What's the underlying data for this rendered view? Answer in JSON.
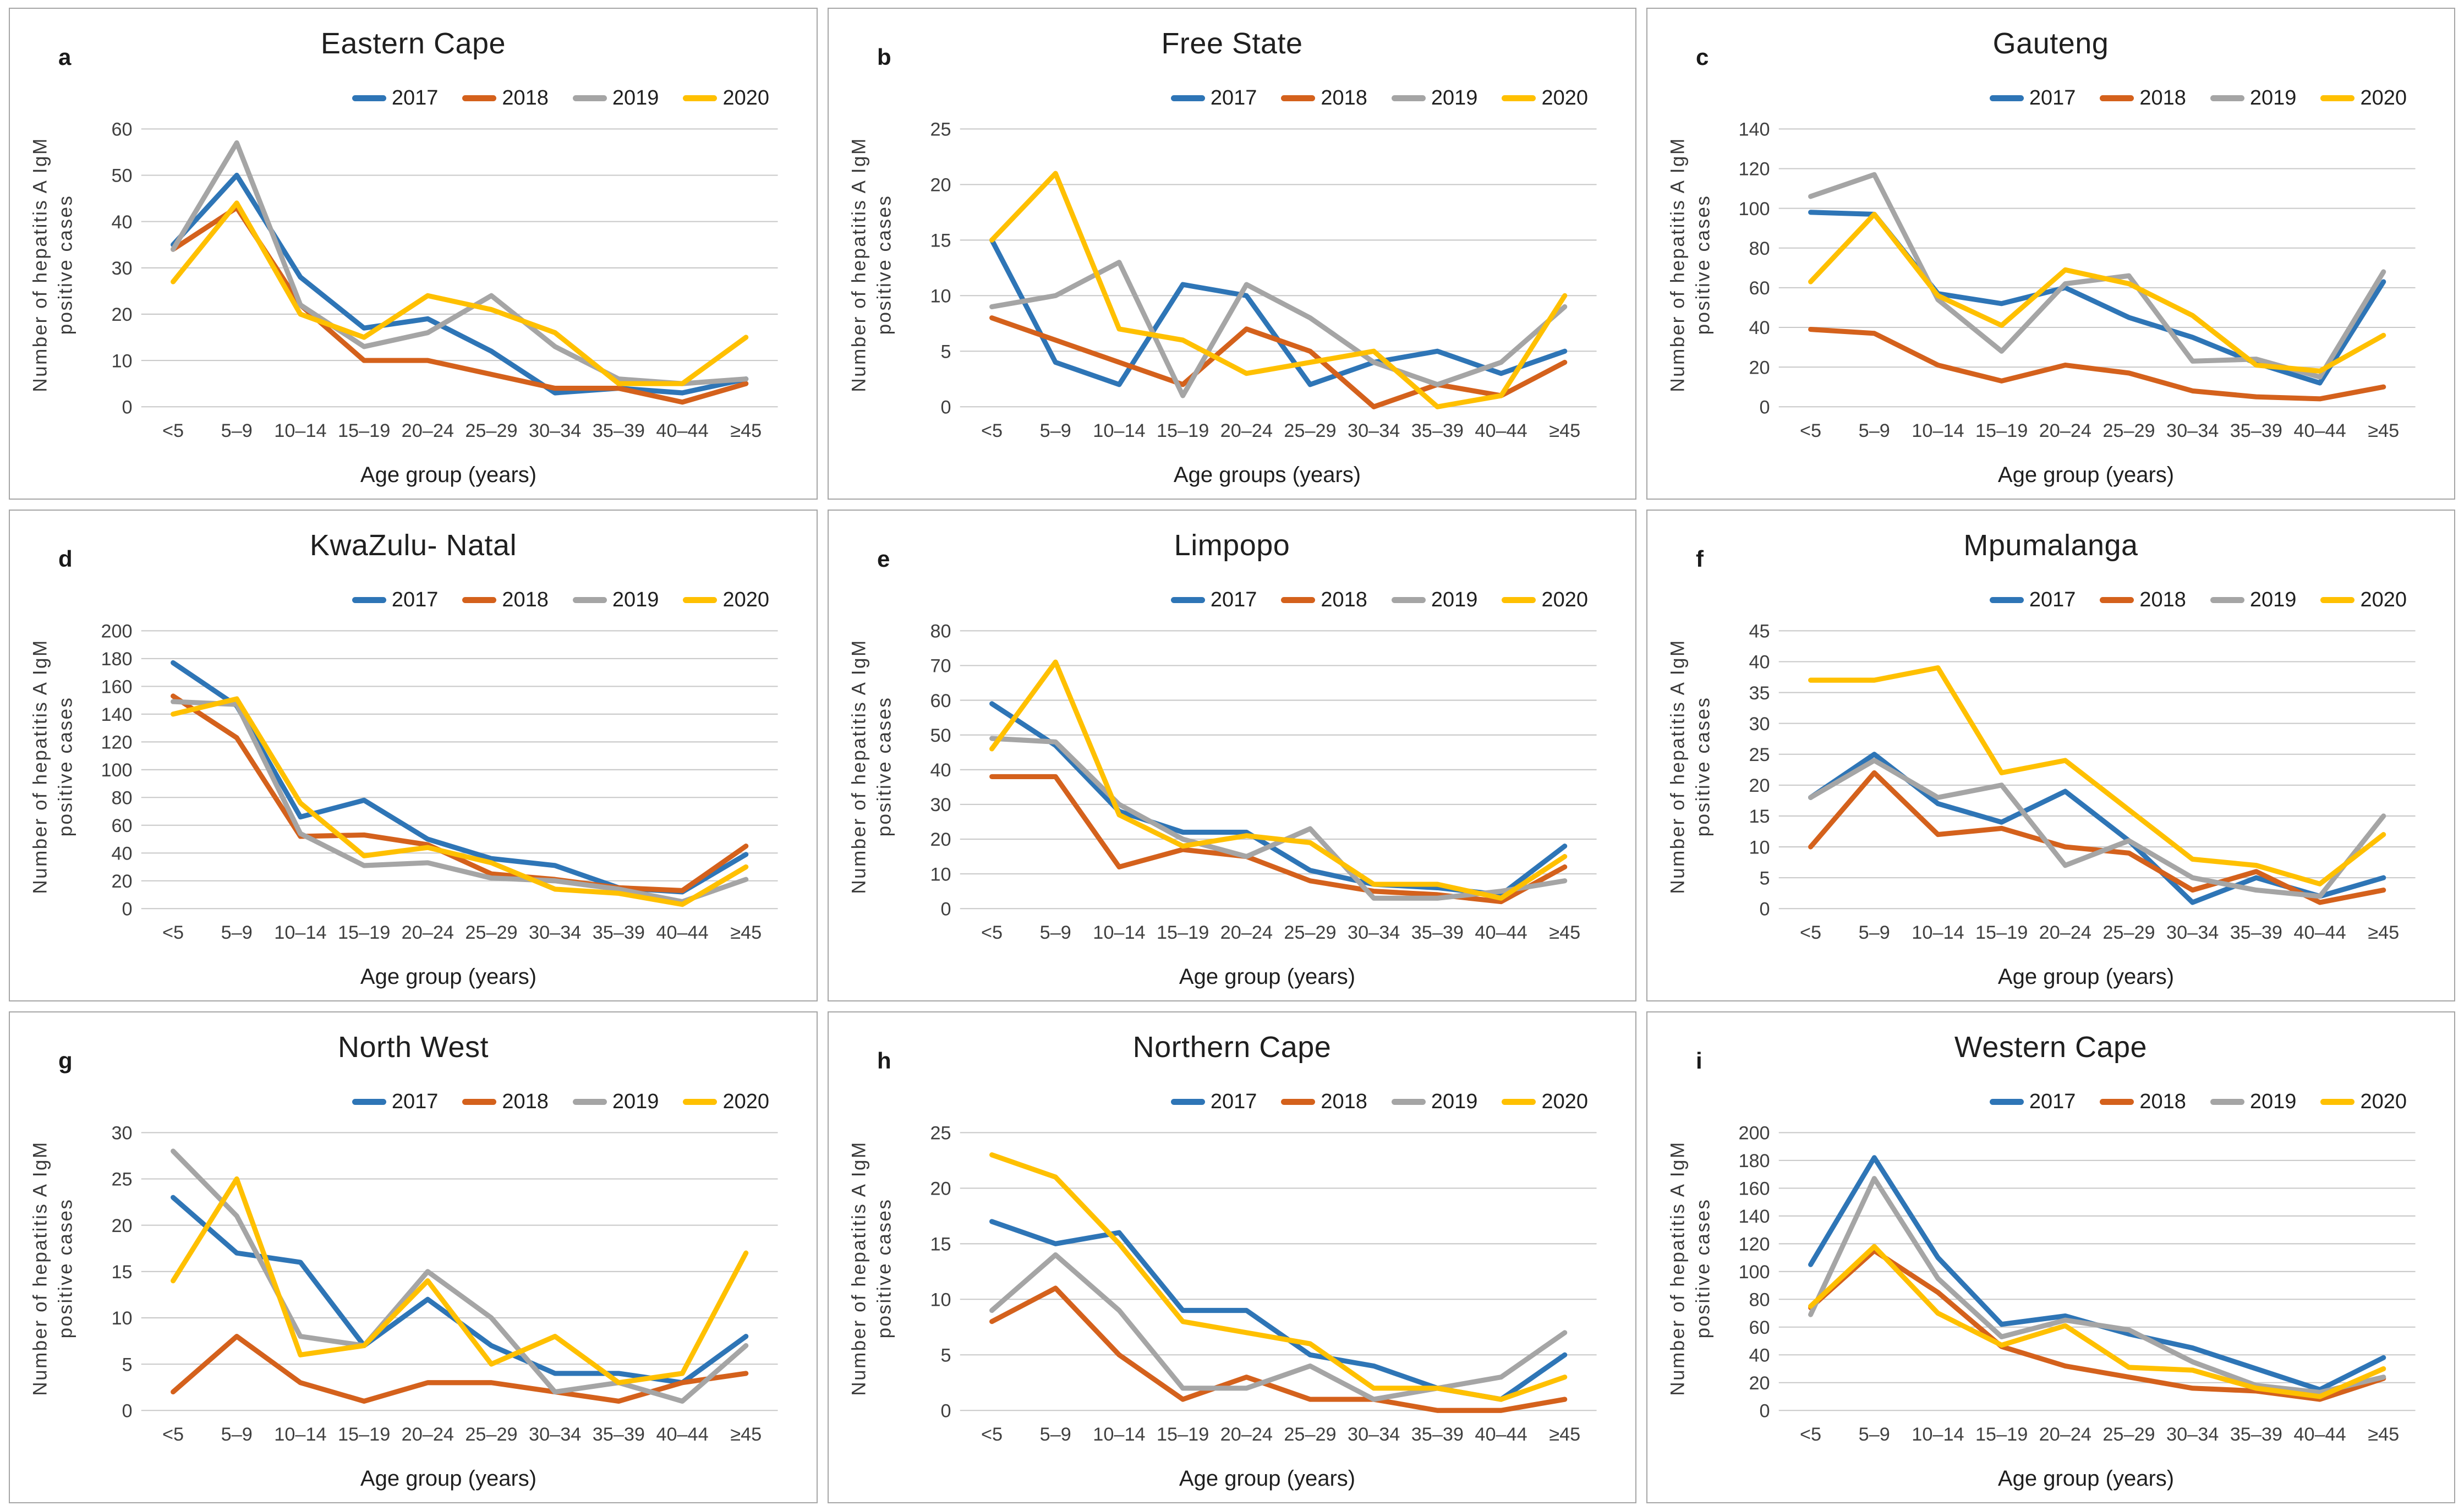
{
  "figure": {
    "layout_hints": {
      "grid": "3 columns x 3 rows",
      "legend_position": "top-right inside each panel",
      "gridlines": "horizontal only",
      "line_thickness": "thick",
      "panel_border_color": "#a6a6a6",
      "gridline_color": "#c8c8c8"
    },
    "series_colors": {
      "2017": "#2e75b6",
      "2018": "#d4611c",
      "2019": "#a5a5a5",
      "2020": "#ffc000"
    }
  },
  "chart_data": [
    {
      "letter": "a",
      "title": "Eastern Cape",
      "type": "line",
      "xlabel": "Age group (years)",
      "ylabel": "Number of hepatitis A IgM positive cases",
      "ylim": [
        0,
        60
      ],
      "ytick_step": 10,
      "categories": [
        "<5",
        "5–9",
        "10–14",
        "15–19",
        "20–24",
        "25–29",
        "30–34",
        "35–39",
        "40–44",
        "≥45"
      ],
      "series": [
        {
          "name": "2017",
          "color": "#2e75b6",
          "values": [
            35,
            50,
            28,
            17,
            19,
            12,
            3,
            4,
            3,
            6
          ]
        },
        {
          "name": "2018",
          "color": "#d4611c",
          "values": [
            34,
            43,
            22,
            10,
            10,
            7,
            4,
            4,
            1,
            5
          ]
        },
        {
          "name": "2019",
          "color": "#a5a5a5",
          "values": [
            34,
            57,
            22,
            13,
            16,
            24,
            13,
            6,
            5,
            6
          ]
        },
        {
          "name": "2020",
          "color": "#ffc000",
          "values": [
            27,
            44,
            20,
            15,
            24,
            21,
            16,
            5,
            5,
            15
          ]
        }
      ]
    },
    {
      "letter": "b",
      "title": "Free State",
      "type": "line",
      "xlabel": "Age groups (years)",
      "ylabel": "Number of hepatitis A IgM positive cases",
      "ylim": [
        0,
        25
      ],
      "ytick_step": 5,
      "categories": [
        "<5",
        "5–9",
        "10–14",
        "15–19",
        "20–24",
        "25–29",
        "30–34",
        "35–39",
        "40–44",
        "≥45"
      ],
      "series": [
        {
          "name": "2017",
          "color": "#2e75b6",
          "values": [
            15,
            4,
            2,
            11,
            10,
            2,
            4,
            5,
            3,
            5
          ]
        },
        {
          "name": "2018",
          "color": "#d4611c",
          "values": [
            8,
            6,
            4,
            2,
            7,
            5,
            0,
            2,
            1,
            4
          ]
        },
        {
          "name": "2019",
          "color": "#a5a5a5",
          "values": [
            9,
            10,
            13,
            1,
            11,
            8,
            4,
            2,
            4,
            9
          ]
        },
        {
          "name": "2020",
          "color": "#ffc000",
          "values": [
            15,
            21,
            7,
            6,
            3,
            4,
            5,
            0,
            1,
            10
          ]
        }
      ]
    },
    {
      "letter": "c",
      "title": "Gauteng",
      "type": "line",
      "xlabel": "Age group (years)",
      "ylabel": "Number of hepatitis A IgM positive cases",
      "ylim": [
        0,
        140
      ],
      "ytick_step": 20,
      "categories": [
        "<5",
        "5–9",
        "10–14",
        "15–19",
        "20–24",
        "25–29",
        "30–34",
        "35–39",
        "40–44",
        "≥45"
      ],
      "series": [
        {
          "name": "2017",
          "color": "#2e75b6",
          "values": [
            98,
            97,
            57,
            52,
            60,
            45,
            35,
            22,
            12,
            63
          ]
        },
        {
          "name": "2018",
          "color": "#d4611c",
          "values": [
            39,
            37,
            21,
            13,
            21,
            17,
            8,
            5,
            4,
            10
          ]
        },
        {
          "name": "2019",
          "color": "#a5a5a5",
          "values": [
            106,
            117,
            54,
            28,
            62,
            66,
            23,
            24,
            15,
            68
          ]
        },
        {
          "name": "2020",
          "color": "#ffc000",
          "values": [
            63,
            97,
            56,
            41,
            69,
            62,
            46,
            21,
            18,
            36
          ]
        }
      ]
    },
    {
      "letter": "d",
      "title": "KwaZulu- Natal",
      "type": "line",
      "xlabel": "Age group (years)",
      "ylabel": "Number of hepatitis A IgM positive cases",
      "ylim": [
        0,
        200
      ],
      "ytick_step": 20,
      "categories": [
        "<5",
        "5–9",
        "10–14",
        "15–19",
        "20–24",
        "25–29",
        "30–34",
        "35–39",
        "40–44",
        "≥45"
      ],
      "series": [
        {
          "name": "2017",
          "color": "#2e75b6",
          "values": [
            177,
            146,
            66,
            78,
            50,
            36,
            31,
            15,
            12,
            39
          ]
        },
        {
          "name": "2018",
          "color": "#d4611c",
          "values": [
            153,
            123,
            52,
            53,
            46,
            25,
            21,
            15,
            13,
            45
          ]
        },
        {
          "name": "2019",
          "color": "#a5a5a5",
          "values": [
            149,
            147,
            54,
            31,
            33,
            22,
            20,
            14,
            5,
            21
          ]
        },
        {
          "name": "2020",
          "color": "#ffc000",
          "values": [
            140,
            151,
            76,
            38,
            44,
            33,
            14,
            11,
            3,
            30
          ]
        }
      ]
    },
    {
      "letter": "e",
      "title": "Limpopo",
      "type": "line",
      "xlabel": "Age group (years)",
      "ylabel": "Number of hepatitis A IgM positive cases",
      "ylim": [
        0,
        80
      ],
      "ytick_step": 10,
      "categories": [
        "<5",
        "5–9",
        "10–14",
        "15–19",
        "20–24",
        "25–29",
        "30–34",
        "35–39",
        "40–44",
        "≥45"
      ],
      "series": [
        {
          "name": "2017",
          "color": "#2e75b6",
          "values": [
            59,
            47,
            28,
            22,
            22,
            11,
            7,
            6,
            4,
            18
          ]
        },
        {
          "name": "2018",
          "color": "#d4611c",
          "values": [
            38,
            38,
            12,
            17,
            15,
            8,
            5,
            4,
            2,
            12
          ]
        },
        {
          "name": "2019",
          "color": "#a5a5a5",
          "values": [
            49,
            48,
            30,
            20,
            15,
            23,
            3,
            3,
            5,
            8
          ]
        },
        {
          "name": "2020",
          "color": "#ffc000",
          "values": [
            46,
            71,
            27,
            18,
            21,
            19,
            7,
            7,
            3,
            15
          ]
        }
      ]
    },
    {
      "letter": "f",
      "title": "Mpumalanga",
      "type": "line",
      "xlabel": "Age group (years)",
      "ylabel": "Number of hepatitis A IgM positive cases",
      "ylim": [
        0,
        45
      ],
      "ytick_step": 5,
      "categories": [
        "<5",
        "5–9",
        "10–14",
        "15–19",
        "20–24",
        "25–29",
        "30–34",
        "35–39",
        "40–44",
        "≥45"
      ],
      "series": [
        {
          "name": "2017",
          "color": "#2e75b6",
          "values": [
            18,
            25,
            17,
            14,
            19,
            11,
            1,
            5,
            2,
            5
          ]
        },
        {
          "name": "2018",
          "color": "#d4611c",
          "values": [
            10,
            22,
            12,
            13,
            10,
            9,
            3,
            6,
            1,
            3
          ]
        },
        {
          "name": "2019",
          "color": "#a5a5a5",
          "values": [
            18,
            24,
            18,
            20,
            7,
            11,
            5,
            3,
            2,
            15
          ]
        },
        {
          "name": "2020",
          "color": "#ffc000",
          "values": [
            37,
            37,
            39,
            22,
            24,
            16,
            8,
            7,
            4,
            12
          ]
        }
      ]
    },
    {
      "letter": "g",
      "title": "North West",
      "type": "line",
      "xlabel": "Age group (years)",
      "ylabel": "Number of hepatitis A IgM positive cases",
      "ylim": [
        0,
        30
      ],
      "ytick_step": 5,
      "categories": [
        "<5",
        "5–9",
        "10–14",
        "15–19",
        "20–24",
        "25–29",
        "30–34",
        "35–39",
        "40–44",
        "≥45"
      ],
      "series": [
        {
          "name": "2017",
          "color": "#2e75b6",
          "values": [
            23,
            17,
            16,
            7,
            12,
            7,
            4,
            4,
            3,
            8
          ]
        },
        {
          "name": "2018",
          "color": "#d4611c",
          "values": [
            2,
            8,
            3,
            1,
            3,
            3,
            2,
            1,
            3,
            4
          ]
        },
        {
          "name": "2019",
          "color": "#a5a5a5",
          "values": [
            28,
            21,
            8,
            7,
            15,
            10,
            2,
            3,
            1,
            7
          ]
        },
        {
          "name": "2020",
          "color": "#ffc000",
          "values": [
            14,
            25,
            6,
            7,
            14,
            5,
            8,
            3,
            4,
            17
          ]
        }
      ]
    },
    {
      "letter": "h",
      "title": "Northern Cape",
      "type": "line",
      "xlabel": "Age group (years)",
      "ylabel": "Number of hepatitis A IgM positive cases",
      "ylim": [
        0,
        25
      ],
      "ytick_step": 5,
      "categories": [
        "<5",
        "5–9",
        "10–14",
        "15–19",
        "20–24",
        "25–29",
        "30–34",
        "35–39",
        "40–44",
        "≥45"
      ],
      "series": [
        {
          "name": "2017",
          "color": "#2e75b6",
          "values": [
            17,
            15,
            16,
            9,
            9,
            5,
            4,
            2,
            1,
            5
          ]
        },
        {
          "name": "2018",
          "color": "#d4611c",
          "values": [
            8,
            11,
            5,
            1,
            3,
            1,
            1,
            0,
            0,
            1
          ]
        },
        {
          "name": "2019",
          "color": "#a5a5a5",
          "values": [
            9,
            14,
            9,
            2,
            2,
            4,
            1,
            2,
            3,
            7
          ]
        },
        {
          "name": "2020",
          "color": "#ffc000",
          "values": [
            23,
            21,
            15,
            8,
            7,
            6,
            2,
            2,
            1,
            3
          ]
        }
      ]
    },
    {
      "letter": "i",
      "title": "Western Cape",
      "type": "line",
      "xlabel": "Age group (years)",
      "ylabel": "Number of hepatitis A IgM positive cases",
      "ylim": [
        0,
        200
      ],
      "ytick_step": 20,
      "categories": [
        "<5",
        "5–9",
        "10–14",
        "15–19",
        "20–24",
        "25–29",
        "30–34",
        "35–39",
        "40–44",
        "≥45"
      ],
      "series": [
        {
          "name": "2017",
          "color": "#2e75b6",
          "values": [
            105,
            182,
            110,
            62,
            68,
            55,
            45,
            30,
            15,
            38
          ]
        },
        {
          "name": "2018",
          "color": "#d4611c",
          "values": [
            74,
            115,
            85,
            46,
            32,
            24,
            16,
            14,
            8,
            23
          ]
        },
        {
          "name": "2019",
          "color": "#a5a5a5",
          "values": [
            69,
            167,
            95,
            53,
            65,
            58,
            35,
            18,
            13,
            24
          ]
        },
        {
          "name": "2020",
          "color": "#ffc000",
          "values": [
            75,
            118,
            70,
            47,
            61,
            31,
            29,
            16,
            10,
            30
          ]
        }
      ]
    }
  ]
}
